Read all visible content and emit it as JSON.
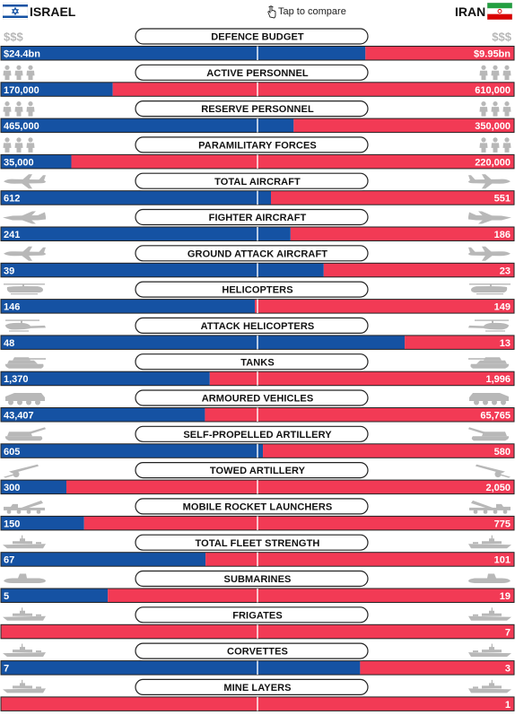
{
  "header": {
    "left_country": "ISRAEL",
    "right_country": "IRAN",
    "tap_hint": "Tap to compare"
  },
  "colors": {
    "israel": "#1552a3",
    "iran": "#f23a55",
    "icon_gray": "#b8b8b8",
    "pill_border": "#222222"
  },
  "chart_data": {
    "type": "bar",
    "orientation": "horizontal-diverging",
    "series": [
      {
        "name": "ISRAEL"
      },
      {
        "name": "IRAN"
      }
    ],
    "rows": [
      {
        "label": "DEFENCE BUDGET",
        "icon": "dollar-signs",
        "israel": 24.4,
        "iran": 9.95,
        "israel_text": "$24.4bn",
        "iran_text": "$9.95bn",
        "icon_text": "$$$"
      },
      {
        "label": "ACTIVE PERSONNEL",
        "icon": "soldier-figures",
        "israel": 170000,
        "iran": 610000,
        "israel_text": "170,000",
        "iran_text": "610,000"
      },
      {
        "label": "RESERVE PERSONNEL",
        "icon": "soldier-figures",
        "israel": 465000,
        "iran": 350000,
        "israel_text": "465,000",
        "iran_text": "350,000"
      },
      {
        "label": "PARAMILITARY FORCES",
        "icon": "soldier-figures",
        "israel": 35000,
        "iran": 220000,
        "israel_text": "35,000",
        "iran_text": "220,000"
      },
      {
        "label": "TOTAL AIRCRAFT",
        "icon": "transport-plane",
        "israel": 612,
        "iran": 551,
        "israel_text": "612",
        "iran_text": "551"
      },
      {
        "label": "FIGHTER AIRCRAFT",
        "icon": "fighter-jet",
        "israel": 241,
        "iran": 186,
        "israel_text": "241",
        "iran_text": "186"
      },
      {
        "label": "GROUND ATTACK AIRCRAFT",
        "icon": "attack-plane",
        "israel": 39,
        "iran": 23,
        "israel_text": "39",
        "iran_text": "23"
      },
      {
        "label": "HELICOPTERS",
        "icon": "transport-helicopter",
        "israel": 146,
        "iran": 149,
        "israel_text": "146",
        "iran_text": "149"
      },
      {
        "label": "ATTACK HELICOPTERS",
        "icon": "attack-helicopter",
        "israel": 48,
        "iran": 13,
        "israel_text": "48",
        "iran_text": "13"
      },
      {
        "label": "TANKS",
        "icon": "tank",
        "israel": 1370,
        "iran": 1996,
        "israel_text": "1,370",
        "iran_text": "1,996"
      },
      {
        "label": "ARMOURED VEHICLES",
        "icon": "armoured-vehicle",
        "israel": 43407,
        "iran": 65765,
        "israel_text": "43,407",
        "iran_text": "65,765"
      },
      {
        "label": "SELF-PROPELLED ARTILLERY",
        "icon": "self-propelled-gun",
        "israel": 605,
        "iran": 580,
        "israel_text": "605",
        "iran_text": "580"
      },
      {
        "label": "TOWED ARTILLERY",
        "icon": "towed-gun",
        "israel": 300,
        "iran": 2050,
        "israel_text": "300",
        "iran_text": "2,050"
      },
      {
        "label": "MOBILE ROCKET LAUNCHERS",
        "icon": "rocket-launcher",
        "israel": 150,
        "iran": 775,
        "israel_text": "150",
        "iran_text": "775"
      },
      {
        "label": "TOTAL FLEET STRENGTH",
        "icon": "warship",
        "israel": 67,
        "iran": 101,
        "israel_text": "67",
        "iran_text": "101"
      },
      {
        "label": "SUBMARINES",
        "icon": "submarine",
        "israel": 5,
        "iran": 19,
        "israel_text": "5",
        "iran_text": "19"
      },
      {
        "label": "FRIGATES",
        "icon": "frigate",
        "israel": 0,
        "iran": 7,
        "israel_text": "",
        "iran_text": "7"
      },
      {
        "label": "CORVETTES",
        "icon": "corvette",
        "israel": 7,
        "iran": 3,
        "israel_text": "7",
        "iran_text": "3"
      },
      {
        "label": "MINE LAYERS",
        "icon": "mine-layer",
        "israel": 0,
        "iran": 1,
        "israel_text": "",
        "iran_text": "1"
      }
    ]
  }
}
